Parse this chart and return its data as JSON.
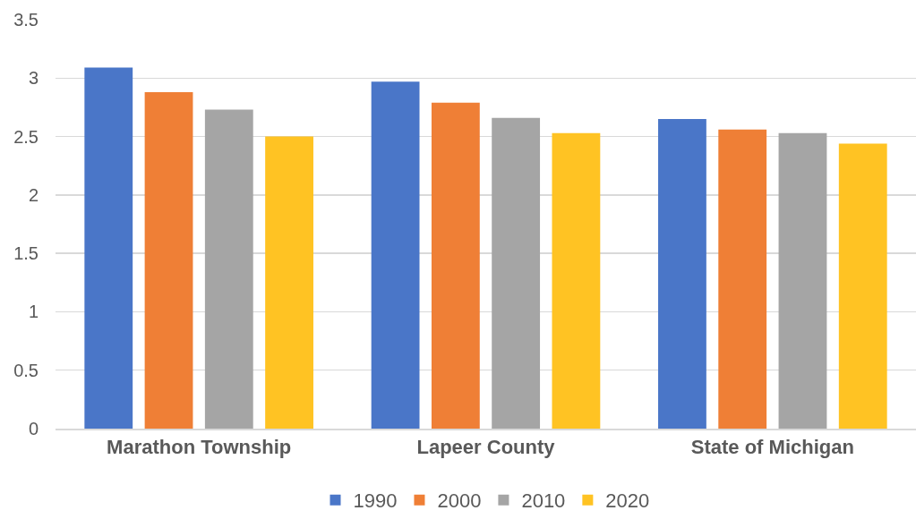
{
  "chart_data": {
    "type": "bar",
    "categories": [
      "Marathon Township",
      "Lapeer County",
      "State of Michigan"
    ],
    "series": [
      {
        "name": "1990",
        "color": "#4a76c8",
        "values": [
          3.09,
          2.97,
          2.65
        ]
      },
      {
        "name": "2000",
        "color": "#ef7f36",
        "values": [
          2.88,
          2.79,
          2.56
        ]
      },
      {
        "name": "2010",
        "color": "#a5a5a5",
        "values": [
          2.73,
          2.66,
          2.53
        ]
      },
      {
        "name": "2020",
        "color": "#ffc323",
        "values": [
          2.5,
          2.53,
          2.44
        ]
      }
    ],
    "ylim": [
      0,
      3.5
    ],
    "yticks": [
      0,
      0.5,
      1,
      1.5,
      2,
      2.5,
      3,
      3.5
    ],
    "grid": "y",
    "legend": "bottom"
  }
}
